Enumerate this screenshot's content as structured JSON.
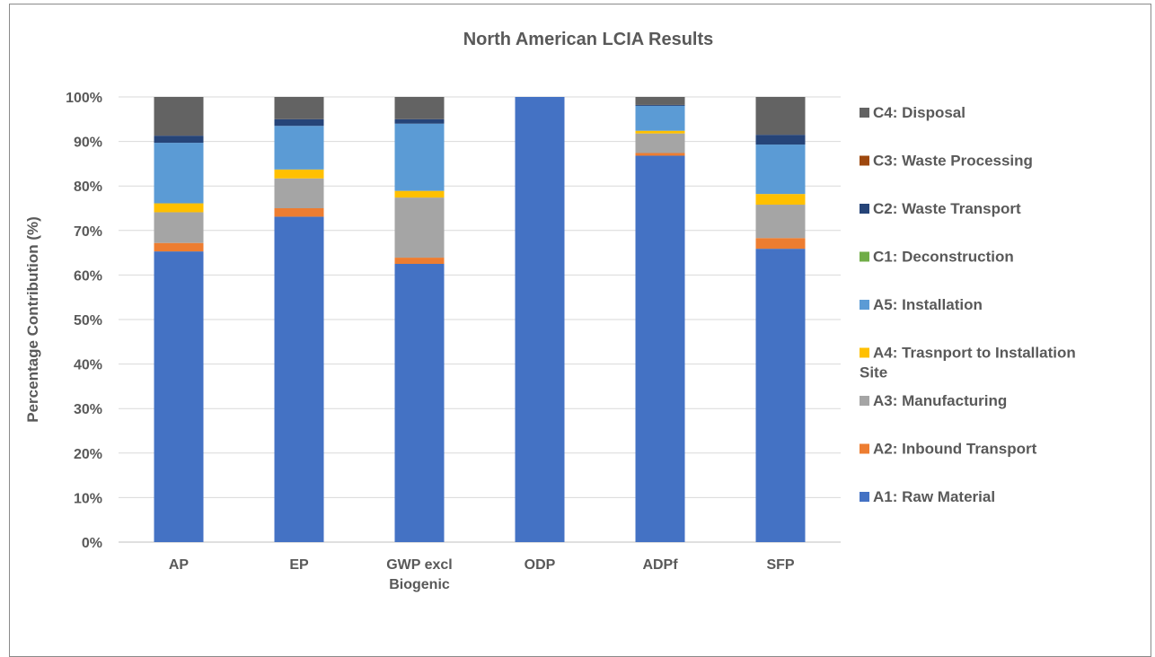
{
  "chart_data": {
    "type": "bar",
    "stacked": true,
    "percent": true,
    "title": "North American LCIA Results",
    "ylabel": "Percentage Contribution (%)",
    "xlabel": "",
    "ylim": [
      0,
      100
    ],
    "yticks": [
      "0%",
      "10%",
      "20%",
      "30%",
      "40%",
      "50%",
      "60%",
      "70%",
      "80%",
      "90%",
      "100%"
    ],
    "grid": true,
    "legend_position": "right",
    "categories": [
      "AP",
      "EP",
      "GWP excl Biogenic",
      "ODP",
      "ADPf",
      "SFP"
    ],
    "category_lines": [
      [
        "AP"
      ],
      [
        "EP"
      ],
      [
        "GWP excl",
        "Biogenic"
      ],
      [
        "ODP"
      ],
      [
        "ADPf"
      ],
      [
        "SFP"
      ]
    ],
    "series": [
      {
        "name": "A1: Raw Material",
        "color": "#4472C4",
        "values": [
          65.3,
          73.1,
          62.5,
          100.0,
          86.8,
          65.9
        ]
      },
      {
        "name": "A2: Inbound Transport",
        "color": "#ED7D31",
        "values": [
          1.9,
          1.9,
          1.4,
          0.0,
          0.6,
          2.4
        ]
      },
      {
        "name": "A3: Manufacturing",
        "color": "#A5A5A5",
        "values": [
          6.9,
          6.7,
          13.5,
          0.0,
          4.4,
          7.5
        ]
      },
      {
        "name": "A4: Trasnport to Installation Site",
        "legend_lines": [
          "A4: Trasnport to Installation",
          "Site"
        ],
        "color": "#FFC000",
        "values": [
          2.0,
          2.0,
          1.5,
          0.0,
          0.6,
          2.4
        ]
      },
      {
        "name": "A5: Installation",
        "color": "#5B9BD5",
        "values": [
          13.6,
          9.8,
          15.1,
          0.0,
          5.6,
          11.1
        ]
      },
      {
        "name": "C1: Deconstruction",
        "color": "#70AD47",
        "values": [
          0.0,
          0.0,
          0.0,
          0.0,
          0.0,
          0.0
        ]
      },
      {
        "name": "C2: Waste Transport",
        "color": "#264478",
        "values": [
          1.6,
          1.5,
          1.0,
          0.0,
          0.2,
          2.2
        ]
      },
      {
        "name": "C3: Waste Processing",
        "color": "#9E480E",
        "values": [
          0.0,
          0.0,
          0.0,
          0.0,
          0.0,
          0.0
        ]
      },
      {
        "name": "C4: Disposal",
        "color": "#636363",
        "values": [
          8.7,
          5.0,
          5.0,
          0.0,
          1.8,
          8.5
        ]
      }
    ]
  }
}
